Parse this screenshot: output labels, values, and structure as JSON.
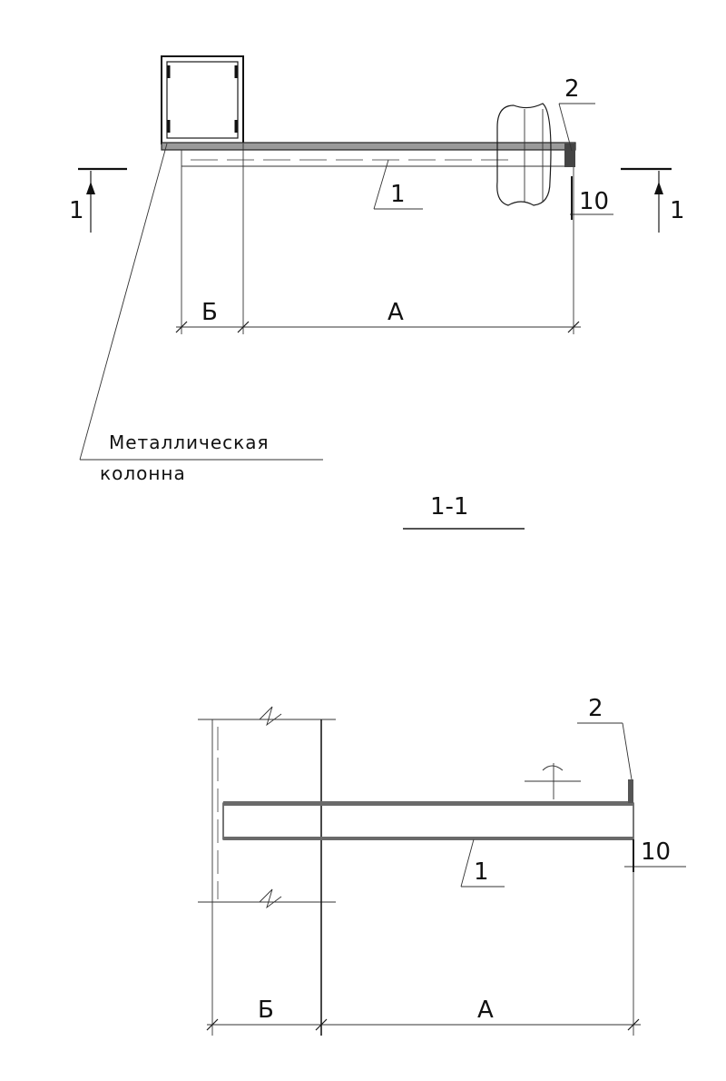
{
  "plan_view": {
    "callout_plate": "1",
    "callout_weld": "2",
    "dimension_gap": "10",
    "dimension_b": "Б",
    "dimension_a": "А",
    "section_mark_left": "1",
    "section_mark_right": "1",
    "column_label_line1": "Металлическая",
    "column_label_line2": "колонна"
  },
  "section": {
    "title": "1-1",
    "callout_plate": "1",
    "callout_weld": "2",
    "dimension_gap": "10",
    "dimension_b": "Б",
    "dimension_a": "А"
  }
}
